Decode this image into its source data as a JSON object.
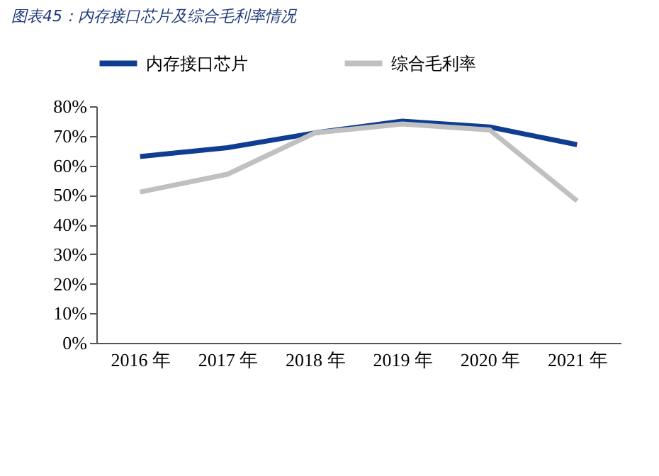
{
  "chart_data": {
    "type": "line",
    "title": "图表45：内存接口芯片及综合毛利率情况",
    "categories": [
      "2016 年",
      "2017 年",
      "2018 年",
      "2019 年",
      "2020 年",
      "2021 年"
    ],
    "series": [
      {
        "name": "内存接口芯片",
        "color": "#0f3d91",
        "values": [
          63,
          66,
          71,
          75,
          73,
          67
        ]
      },
      {
        "name": "综合毛利率",
        "color": "#c0c0c0",
        "values": [
          51,
          57,
          71,
          74,
          72,
          48
        ]
      }
    ],
    "ylim": [
      0,
      80
    ],
    "yticks": [
      {
        "value": 0,
        "label": "0%"
      },
      {
        "value": 10,
        "label": "10%"
      },
      {
        "value": 20,
        "label": "20%"
      },
      {
        "value": 30,
        "label": "30%"
      },
      {
        "value": 40,
        "label": "40%"
      },
      {
        "value": 50,
        "label": "50%"
      },
      {
        "value": 60,
        "label": "60%"
      },
      {
        "value": 70,
        "label": "70%"
      },
      {
        "value": 80,
        "label": "80%"
      }
    ],
    "grid": false,
    "legend": "top",
    "marker": "none",
    "line_style": "solid"
  }
}
